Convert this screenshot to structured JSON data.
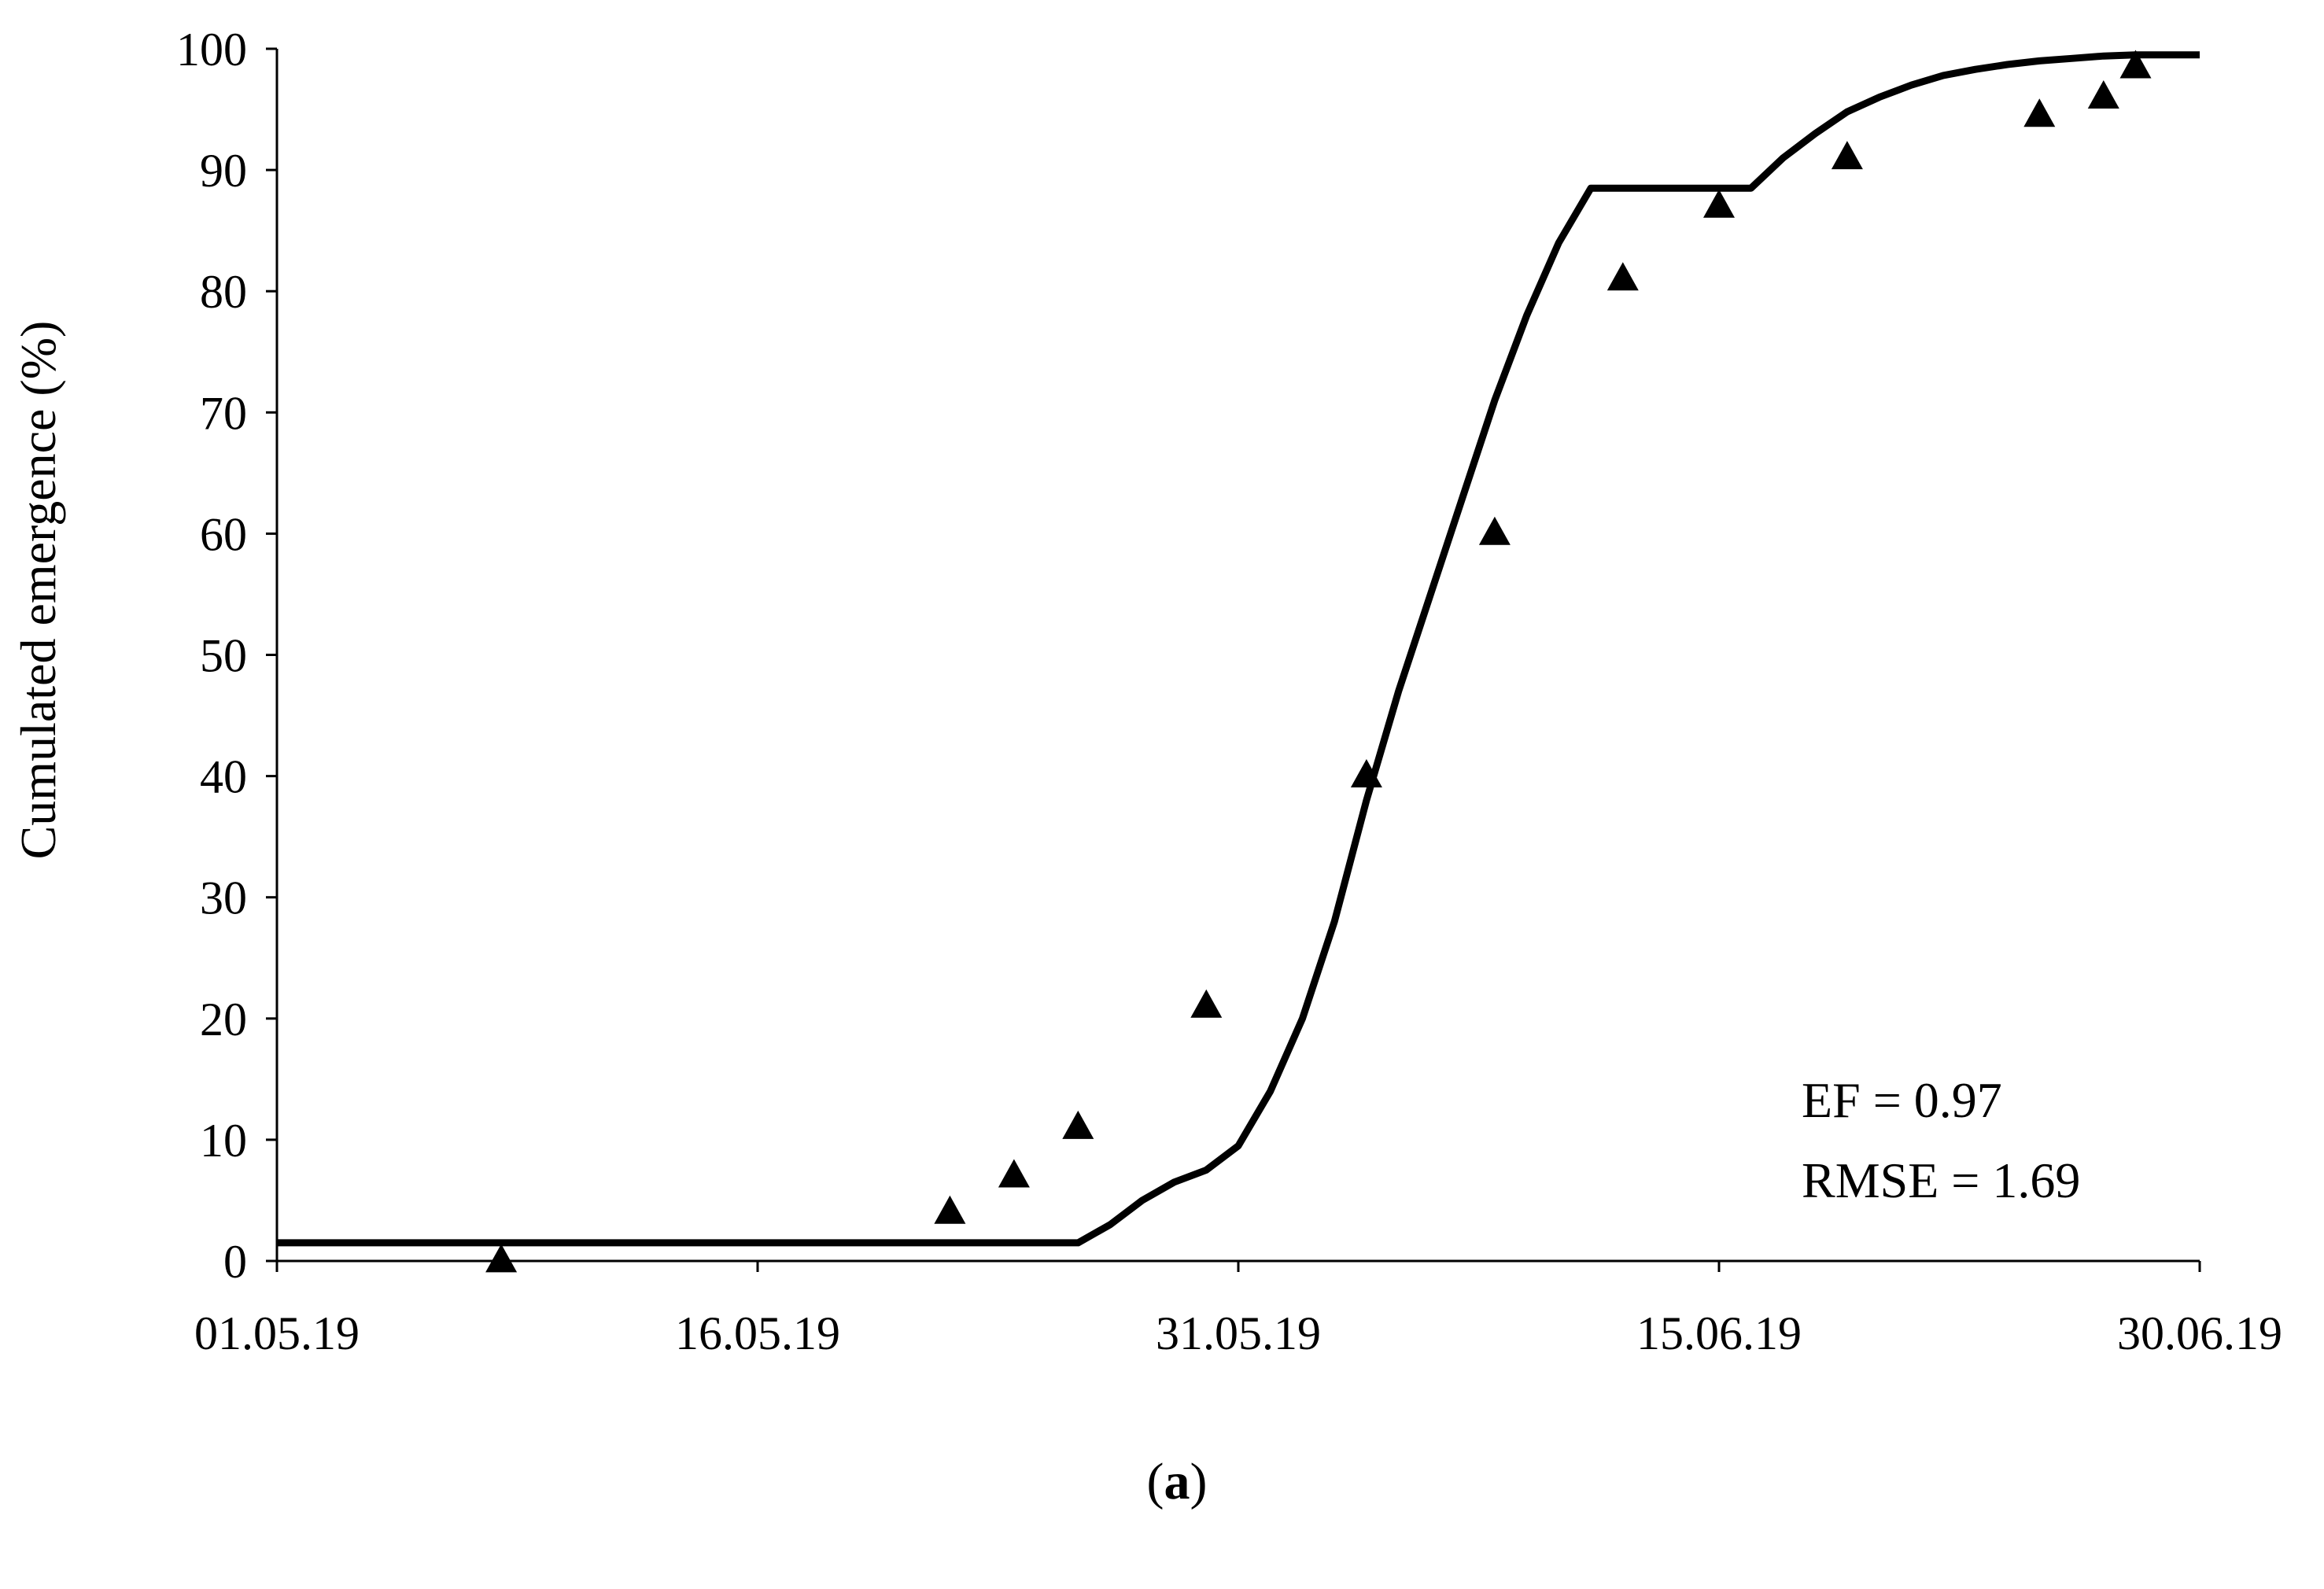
{
  "chart_data": {
    "type": "line",
    "title": "",
    "ylabel": "Cumulated emergence (%)",
    "xlabel": "",
    "x_ticks": [
      "01.05.19",
      "16.05.19",
      "31.05.19",
      "15.06.19",
      "30.06.19"
    ],
    "y_ticks": [
      "0",
      "10",
      "20",
      "30",
      "40",
      "50",
      "60",
      "70",
      "80",
      "90",
      "100"
    ],
    "xlim": [
      "2019-05-01",
      "2019-06-30"
    ],
    "ylim": [
      0,
      100
    ],
    "grid": false,
    "legend": "none",
    "colors": {
      "line": "#000000",
      "markers": "#000000"
    },
    "series": [
      {
        "type": "scatter",
        "marker": "triangle",
        "points": [
          {
            "x": "2019-05-08",
            "y": 0
          },
          {
            "x": "2019-05-22",
            "y": 4
          },
          {
            "x": "2019-05-24",
            "y": 7
          },
          {
            "x": "2019-05-26",
            "y": 11
          },
          {
            "x": "2019-05-30",
            "y": 21
          },
          {
            "x": "2019-06-04",
            "y": 40
          },
          {
            "x": "2019-06-08",
            "y": 60
          },
          {
            "x": "2019-06-12",
            "y": 81
          },
          {
            "x": "2019-06-15",
            "y": 87
          },
          {
            "x": "2019-06-19",
            "y": 91
          },
          {
            "x": "2019-06-25",
            "y": 94.5
          },
          {
            "x": "2019-06-27",
            "y": 96
          },
          {
            "x": "2019-06-28",
            "y": 98.5
          }
        ]
      },
      {
        "type": "line",
        "points": [
          {
            "x": "2019-05-01",
            "y": 1.5
          },
          {
            "x": "2019-05-26",
            "y": 1.5
          },
          {
            "x": "2019-05-27",
            "y": 3
          },
          {
            "x": "2019-05-28",
            "y": 5
          },
          {
            "x": "2019-05-29",
            "y": 6.5
          },
          {
            "x": "2019-05-30",
            "y": 7.5
          },
          {
            "x": "2019-05-31",
            "y": 9.5
          },
          {
            "x": "2019-06-01",
            "y": 14
          },
          {
            "x": "2019-06-02",
            "y": 20
          },
          {
            "x": "2019-06-03",
            "y": 28
          },
          {
            "x": "2019-06-04",
            "y": 38
          },
          {
            "x": "2019-06-05",
            "y": 47
          },
          {
            "x": "2019-06-06",
            "y": 55
          },
          {
            "x": "2019-06-07",
            "y": 63
          },
          {
            "x": "2019-06-08",
            "y": 71
          },
          {
            "x": "2019-06-09",
            "y": 78
          },
          {
            "x": "2019-06-10",
            "y": 84
          },
          {
            "x": "2019-06-11",
            "y": 88.5
          },
          {
            "x": "2019-06-12",
            "y": 88.5
          },
          {
            "x": "2019-06-13",
            "y": 88.5
          },
          {
            "x": "2019-06-14",
            "y": 88.5
          },
          {
            "x": "2019-06-15",
            "y": 88.5
          },
          {
            "x": "2019-06-16",
            "y": 88.5
          },
          {
            "x": "2019-06-17",
            "y": 91
          },
          {
            "x": "2019-06-18",
            "y": 93
          },
          {
            "x": "2019-06-19",
            "y": 94.8
          },
          {
            "x": "2019-06-20",
            "y": 96
          },
          {
            "x": "2019-06-21",
            "y": 97
          },
          {
            "x": "2019-06-22",
            "y": 97.8
          },
          {
            "x": "2019-06-23",
            "y": 98.3
          },
          {
            "x": "2019-06-24",
            "y": 98.7
          },
          {
            "x": "2019-06-25",
            "y": 99
          },
          {
            "x": "2019-06-26",
            "y": 99.2
          },
          {
            "x": "2019-06-27",
            "y": 99.4
          },
          {
            "x": "2019-06-28",
            "y": 99.5
          },
          {
            "x": "2019-06-30",
            "y": 99.5
          }
        ]
      }
    ],
    "annotations": [
      "EF = 0.97",
      "RMSE = 1.69"
    ]
  },
  "caption": {
    "open": "(",
    "letter": "a",
    "close": ")"
  }
}
